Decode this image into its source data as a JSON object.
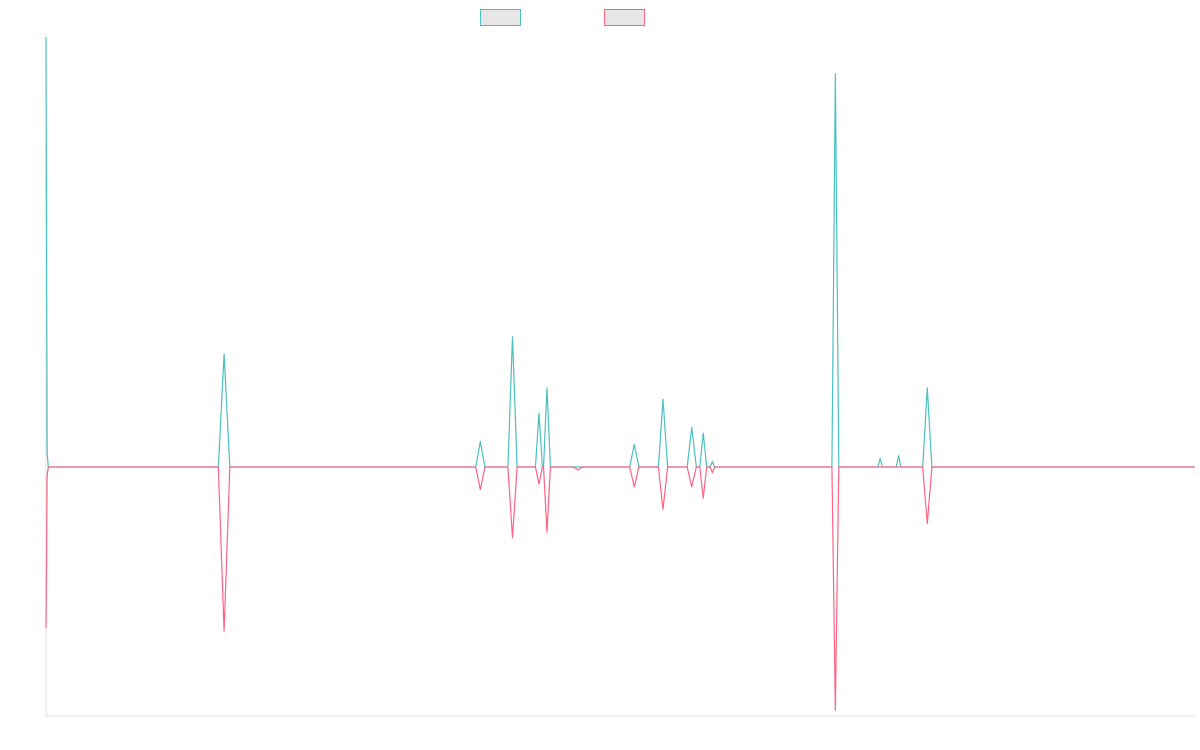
{
  "chart_data": {
    "type": "line",
    "title": "",
    "xlabel": "",
    "ylabel": "",
    "grid": false,
    "legend_position": "top",
    "ylim": [
      -88,
      152
    ],
    "series": [
      {
        "name": "",
        "color": "#4bc0c0",
        "fill": "#e6e6e6",
        "points": [
          [
            0,
            152
          ],
          [
            1,
            5
          ],
          [
            2,
            0
          ],
          [
            150,
            0
          ],
          [
            155,
            40
          ],
          [
            160,
            0
          ],
          [
            184,
            0
          ],
          [
            186,
            0
          ],
          [
            196,
            0
          ],
          [
            198,
            0
          ],
          [
            207,
            0
          ],
          [
            209,
            0
          ],
          [
            232,
            0
          ],
          [
            234,
            0
          ],
          [
            258,
            0
          ],
          [
            260,
            0
          ],
          [
            284,
            0
          ],
          [
            286,
            0
          ],
          [
            310,
            0
          ],
          [
            312,
            0
          ],
          [
            374,
            0
          ],
          [
            378,
            9
          ],
          [
            382,
            0
          ],
          [
            402,
            0
          ],
          [
            406,
            46
          ],
          [
            410,
            0
          ],
          [
            426,
            0
          ],
          [
            429,
            19
          ],
          [
            432,
            0
          ],
          [
            433,
            0
          ],
          [
            436,
            28
          ],
          [
            439,
            0
          ],
          [
            459,
            0
          ],
          [
            463,
            0
          ],
          [
            467,
            0
          ],
          [
            488,
            0
          ],
          [
            490,
            0
          ],
          [
            508,
            0
          ],
          [
            512,
            8
          ],
          [
            516,
            0
          ],
          [
            533,
            0
          ],
          [
            537,
            24
          ],
          [
            541,
            0
          ],
          [
            558,
            0
          ],
          [
            562,
            14
          ],
          [
            566,
            0
          ],
          [
            569,
            0
          ],
          [
            572,
            12
          ],
          [
            575,
            0
          ],
          [
            578,
            0
          ],
          [
            580,
            2
          ],
          [
            582,
            0
          ],
          [
            684,
            0
          ],
          [
            687,
            139
          ],
          [
            690,
            0
          ],
          [
            708,
            0
          ],
          [
            710,
            0
          ],
          [
            724,
            0
          ],
          [
            726,
            3
          ],
          [
            728,
            0
          ],
          [
            740,
            0
          ],
          [
            742,
            4
          ],
          [
            744,
            0
          ],
          [
            763,
            0
          ],
          [
            767,
            28
          ],
          [
            771,
            0
          ],
          [
            1000,
            0
          ]
        ]
      },
      {
        "name": "",
        "color": "#ff6384",
        "fill": "#e6e6e6",
        "points": [
          [
            0,
            -57
          ],
          [
            1,
            -3
          ],
          [
            2,
            0
          ],
          [
            150,
            0
          ],
          [
            155,
            -58
          ],
          [
            160,
            0
          ],
          [
            184,
            0
          ],
          [
            186,
            0
          ],
          [
            196,
            0
          ],
          [
            198,
            0
          ],
          [
            207,
            0
          ],
          [
            209,
            0
          ],
          [
            232,
            0
          ],
          [
            234,
            0
          ],
          [
            258,
            0
          ],
          [
            260,
            0
          ],
          [
            284,
            0
          ],
          [
            286,
            0
          ],
          [
            310,
            0
          ],
          [
            312,
            0
          ],
          [
            374,
            0
          ],
          [
            378,
            -8
          ],
          [
            382,
            0
          ],
          [
            402,
            0
          ],
          [
            406,
            -25
          ],
          [
            410,
            0
          ],
          [
            426,
            0
          ],
          [
            429,
            -6
          ],
          [
            432,
            0
          ],
          [
            433,
            0
          ],
          [
            436,
            -23
          ],
          [
            439,
            0
          ],
          [
            459,
            0
          ],
          [
            463,
            -1
          ],
          [
            467,
            0
          ],
          [
            488,
            0
          ],
          [
            490,
            0
          ],
          [
            508,
            0
          ],
          [
            512,
            -7
          ],
          [
            516,
            0
          ],
          [
            533,
            0
          ],
          [
            537,
            -15
          ],
          [
            541,
            0
          ],
          [
            558,
            0
          ],
          [
            562,
            -7
          ],
          [
            566,
            0
          ],
          [
            569,
            0
          ],
          [
            572,
            -11
          ],
          [
            575,
            0
          ],
          [
            578,
            0
          ],
          [
            580,
            -2
          ],
          [
            582,
            0
          ],
          [
            684,
            0
          ],
          [
            687,
            -86
          ],
          [
            690,
            0
          ],
          [
            708,
            0
          ],
          [
            710,
            0
          ],
          [
            724,
            0
          ],
          [
            726,
            0
          ],
          [
            728,
            0
          ],
          [
            740,
            0
          ],
          [
            742,
            0
          ],
          [
            744,
            0
          ],
          [
            763,
            0
          ],
          [
            767,
            -20
          ],
          [
            771,
            0
          ],
          [
            1000,
            0
          ]
        ]
      }
    ]
  }
}
